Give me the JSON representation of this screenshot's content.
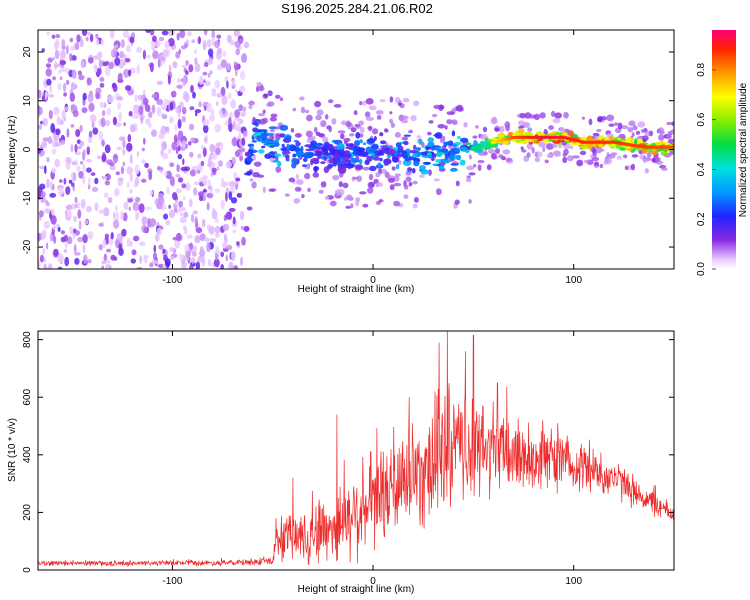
{
  "title": "S196.2025.284.21.06.R02",
  "chart_data": [
    {
      "type": "heatmap",
      "name": "spectrogram",
      "xlabel": "Height of straight line (km)",
      "ylabel": "Frequency (Hz)",
      "xlim": [
        -167,
        150
      ],
      "ylim": [
        -24.5,
        24.5
      ],
      "xticks": [
        -100,
        0,
        100
      ],
      "xtick_labels": [
        "-100",
        "0",
        "100"
      ],
      "yticks": [
        -20,
        -10,
        0,
        10,
        20
      ],
      "ytick_labels": [
        "-20",
        "-10",
        "0",
        "10",
        "20"
      ],
      "colorbar": {
        "label": "Normalized spectral amplitude",
        "range": [
          0,
          0.96
        ],
        "ticks": [
          0.0,
          0.2,
          0.4,
          0.6,
          0.8
        ],
        "tick_labels": [
          "0.0",
          "0.2",
          "0.4",
          "0.6",
          "0.8"
        ]
      },
      "noise_region_x": [
        -167,
        -63
      ],
      "ridge": [
        {
          "x": -63,
          "y": -3.5,
          "a": 0.35
        },
        {
          "x": -58,
          "y": 3.5,
          "a": 0.45
        },
        {
          "x": -50,
          "y": 0.5,
          "a": 0.4
        },
        {
          "x": -40,
          "y": 0.5,
          "a": 0.38
        },
        {
          "x": -30,
          "y": -1.0,
          "a": 0.3
        },
        {
          "x": -15,
          "y": -1.0,
          "a": 0.32
        },
        {
          "x": 0,
          "y": -0.5,
          "a": 0.35
        },
        {
          "x": 15,
          "y": -0.5,
          "a": 0.35
        },
        {
          "x": 30,
          "y": -1.0,
          "a": 0.4
        },
        {
          "x": 42,
          "y": -0.5,
          "a": 0.45
        },
        {
          "x": 52,
          "y": 0.5,
          "a": 0.55
        },
        {
          "x": 60,
          "y": 1.5,
          "a": 0.7
        },
        {
          "x": 70,
          "y": 2.5,
          "a": 0.85
        },
        {
          "x": 85,
          "y": 2.5,
          "a": 0.93
        },
        {
          "x": 95,
          "y": 2.5,
          "a": 0.9
        },
        {
          "x": 105,
          "y": 1.5,
          "a": 0.88
        },
        {
          "x": 120,
          "y": 1.5,
          "a": 0.87
        },
        {
          "x": 135,
          "y": 0.5,
          "a": 0.86
        },
        {
          "x": 150,
          "y": 0.5,
          "a": 0.85
        }
      ]
    },
    {
      "type": "line",
      "name": "snr",
      "xlabel": "Height of straight line (km)",
      "ylabel": "SNR (10 * v/v)",
      "xlim": [
        -167,
        150
      ],
      "ylim": [
        0,
        830
      ],
      "xticks": [
        -100,
        0,
        100
      ],
      "xtick_labels": [
        "-100",
        "0",
        "100"
      ],
      "yticks": [
        0,
        200,
        400,
        600,
        800
      ],
      "ytick_labels": [
        "0",
        "200",
        "400",
        "600",
        "800"
      ],
      "color": "#ee2a2a",
      "envelope": [
        {
          "x": -167,
          "base": 22,
          "amp": 10
        },
        {
          "x": -70,
          "base": 25,
          "amp": 12
        },
        {
          "x": -50,
          "base": 30,
          "amp": 15
        },
        {
          "x": -48,
          "base": 110,
          "amp": 90
        },
        {
          "x": -40,
          "base": 110,
          "amp": 110
        },
        {
          "x": -20,
          "base": 150,
          "amp": 160
        },
        {
          "x": 0,
          "base": 230,
          "amp": 200
        },
        {
          "x": 20,
          "base": 330,
          "amp": 230
        },
        {
          "x": 35,
          "base": 400,
          "amp": 270
        },
        {
          "x": 50,
          "base": 420,
          "amp": 220
        },
        {
          "x": 70,
          "base": 400,
          "amp": 170
        },
        {
          "x": 100,
          "base": 370,
          "amp": 110
        },
        {
          "x": 120,
          "base": 320,
          "amp": 80
        },
        {
          "x": 135,
          "base": 250,
          "amp": 60
        },
        {
          "x": 150,
          "base": 190,
          "amp": 40
        }
      ],
      "peaks": [
        {
          "x": 33,
          "y": 790
        },
        {
          "x": 37,
          "y": 845
        },
        {
          "x": 46,
          "y": 760
        },
        {
          "x": 50,
          "y": 815
        },
        {
          "x": 18,
          "y": 600
        },
        {
          "x": -18,
          "y": 540
        },
        {
          "x": -40,
          "y": 320
        },
        {
          "x": 62,
          "y": 650
        }
      ]
    }
  ]
}
